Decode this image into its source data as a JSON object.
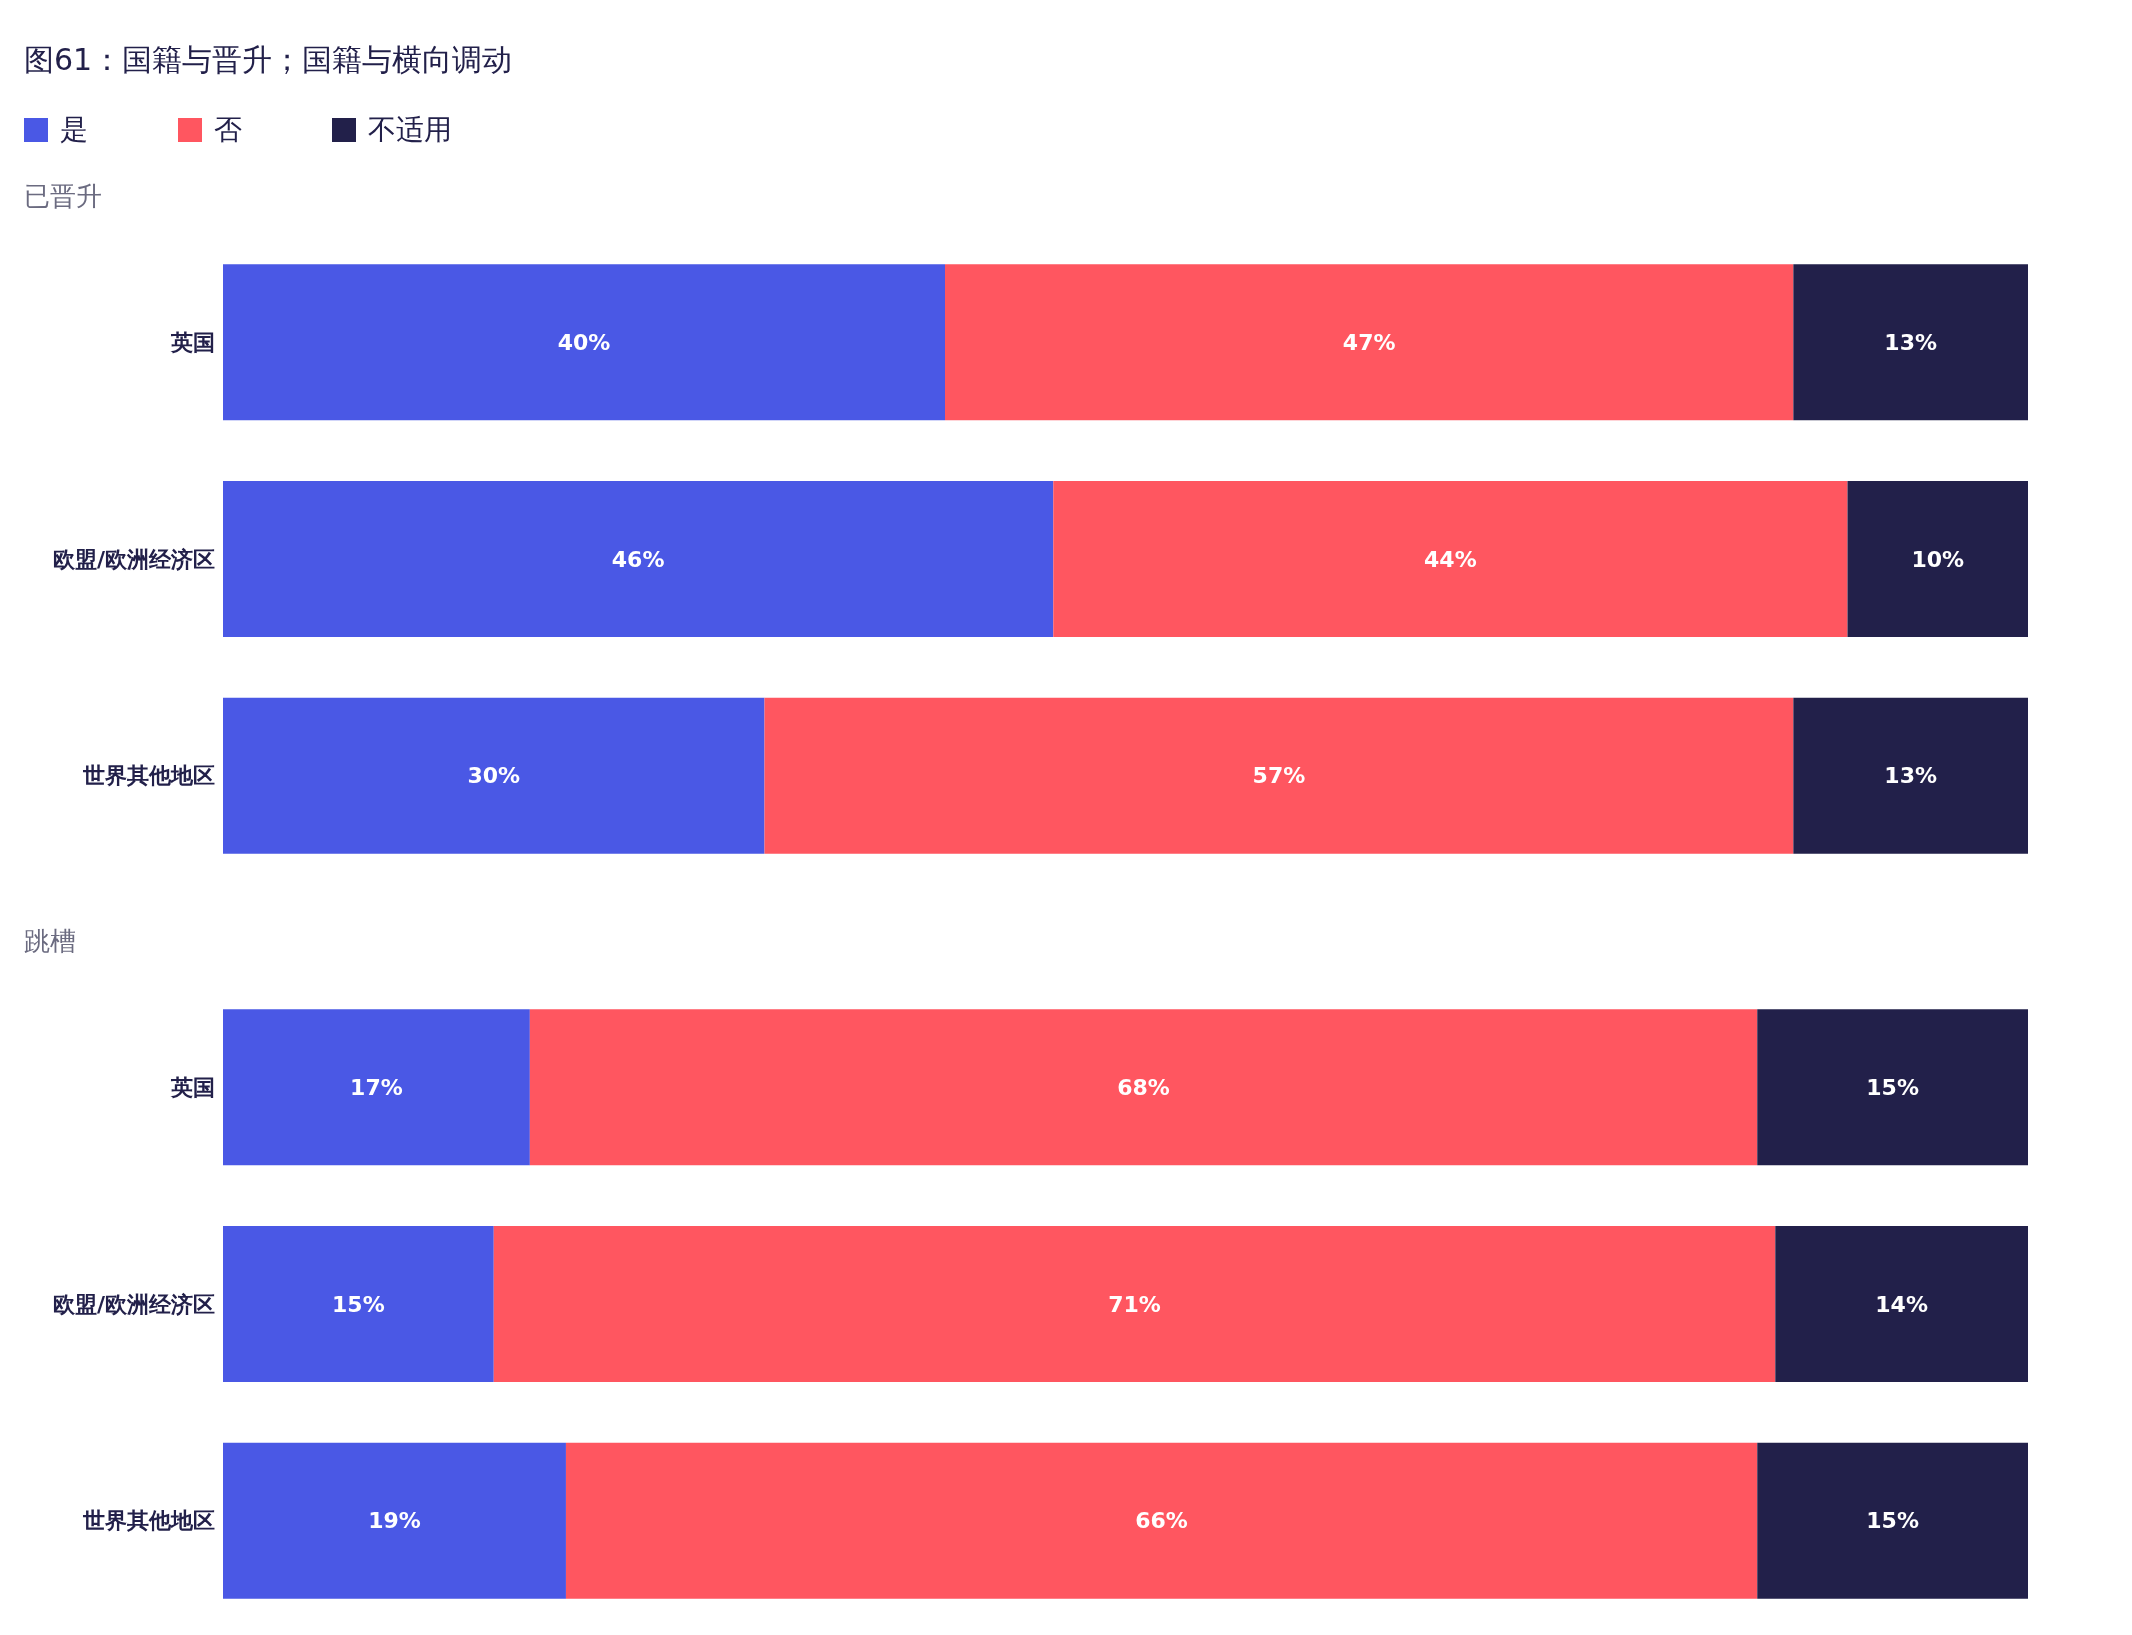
{
  "chart_data": [
    {
      "type": "bar",
      "title": "图61：国籍与晋升；国籍与横向调动",
      "subtitle": "已晋升",
      "orientation": "horizontal",
      "stacked": true,
      "legend": "top left",
      "tick_labels": "y",
      "xlim": [
        0,
        100
      ],
      "categories": [
        "英国",
        "欧盟/欧洲经济区",
        "世界其他地区"
      ],
      "series": [
        {
          "name": "是",
          "color": "#4a58e5",
          "values": [
            40,
            46,
            30
          ],
          "value_labels": [
            "40%",
            "46%",
            "30%"
          ]
        },
        {
          "name": "否",
          "color": "#ff5660",
          "values": [
            47,
            44,
            57
          ],
          "value_labels": [
            "47%",
            "44%",
            "57%"
          ]
        },
        {
          "name": "不适用",
          "color": "#22204a",
          "values": [
            13,
            10,
            13
          ],
          "value_labels": [
            "13%",
            "10%",
            "13%"
          ]
        }
      ]
    },
    {
      "type": "bar",
      "subtitle": "跳槽",
      "orientation": "horizontal",
      "stacked": true,
      "tick_labels": "y",
      "xlim": [
        0,
        100
      ],
      "categories": [
        "英国",
        "欧盟/欧洲经济区",
        "世界其他地区"
      ],
      "series": [
        {
          "color": "#4a58e5",
          "values": [
            17,
            15,
            19
          ],
          "value_labels": [
            "17%",
            "15%",
            "19%"
          ]
        },
        {
          "color": "#ff5660",
          "values": [
            68,
            71,
            66
          ],
          "value_labels": [
            "68%",
            "71%",
            "66%"
          ]
        },
        {
          "color": "#22204a",
          "values": [
            15,
            14,
            15
          ],
          "value_labels": [
            "15%",
            "14%",
            "15%"
          ]
        }
      ]
    }
  ]
}
